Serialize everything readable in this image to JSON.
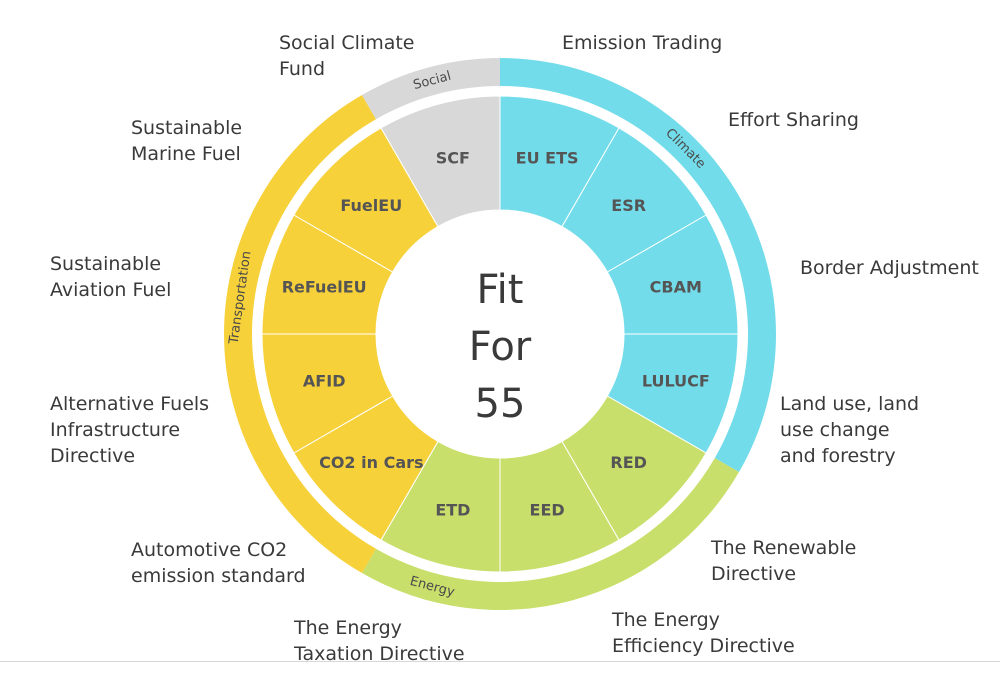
{
  "center": {
    "lines": [
      "Fit",
      "For",
      "55"
    ]
  },
  "colors": {
    "social": "#d8d8d8",
    "climate": "#72dcea",
    "energy": "#c8df6b",
    "transportation": "#f7d13a",
    "center_bg": "#ffffff",
    "divider": "#ffffff"
  },
  "groups": [
    {
      "name": "Climate",
      "color_key": "climate"
    },
    {
      "name": "Energy",
      "color_key": "energy"
    },
    {
      "name": "Transportation",
      "color_key": "transportation"
    },
    {
      "name": "Social",
      "color_key": "social"
    }
  ],
  "segments": [
    {
      "abbr": "EU ETS",
      "group": "climate",
      "description": "Emission Trading"
    },
    {
      "abbr": "ESR",
      "group": "climate",
      "description": "Effort Sharing"
    },
    {
      "abbr": "CBAM",
      "group": "climate",
      "description": "Border Adjustment"
    },
    {
      "abbr": "LULUCF",
      "group": "climate",
      "description": "Land use, land use change and forestry"
    },
    {
      "abbr": "RED",
      "group": "energy",
      "description": "The Renewable Directive"
    },
    {
      "abbr": "EED",
      "group": "energy",
      "description": "The Energy Efficiency Directive"
    },
    {
      "abbr": "ETD",
      "group": "energy",
      "description": "The Energy Taxation Directive"
    },
    {
      "abbr": "CO2 in Cars",
      "group": "transportation",
      "description": "Automotive CO2 emission standard"
    },
    {
      "abbr": "AFID",
      "group": "transportation",
      "description": "Alternative Fuels Infrastructure Directive"
    },
    {
      "abbr": "ReFuelEU",
      "group": "transportation",
      "description": "Sustainable Aviation Fuel"
    },
    {
      "abbr": "FuelEU",
      "group": "transportation",
      "description": "Sustainable Marine Fuel"
    },
    {
      "abbr": "SCF",
      "group": "social",
      "description": "Social Climate Fund"
    }
  ],
  "outer_labels": [
    {
      "lines": [
        "Emission Trading"
      ]
    },
    {
      "lines": [
        "Effort Sharing"
      ]
    },
    {
      "lines": [
        "Border Adjustment"
      ]
    },
    {
      "lines": [
        "Land use, land",
        "use change",
        "and forestry"
      ]
    },
    {
      "lines": [
        "The Renewable",
        "Directive"
      ]
    },
    {
      "lines": [
        "The Energy",
        "Efficiency Directive"
      ]
    },
    {
      "lines": [
        "The Energy",
        "Taxation Directive"
      ]
    },
    {
      "lines": [
        "Automotive CO2",
        "emission standard"
      ]
    },
    {
      "lines": [
        "Alternative Fuels",
        "Infrastructure",
        "Directive"
      ]
    },
    {
      "lines": [
        "Sustainable",
        "Aviation Fuel"
      ]
    },
    {
      "lines": [
        "Sustainable",
        "Marine Fuel"
      ]
    },
    {
      "lines": [
        "Social Climate",
        "Fund"
      ]
    }
  ]
}
